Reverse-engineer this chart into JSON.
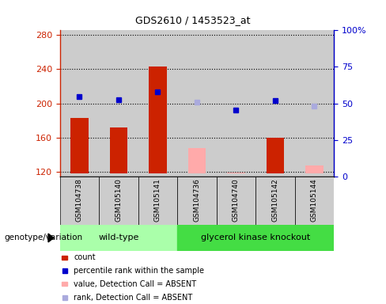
{
  "title": "GDS2610 / 1453523_at",
  "samples": [
    "GSM104738",
    "GSM105140",
    "GSM105141",
    "GSM104736",
    "GSM104740",
    "GSM105142",
    "GSM105144"
  ],
  "group1_count": 3,
  "group2_count": 4,
  "group1_label": "wild-type",
  "group2_label": "glycerol kinase knockout",
  "genotype_label": "genotype/variation",
  "ylim_left": [
    115,
    285
  ],
  "ylim_right": [
    0,
    100
  ],
  "yticks_left": [
    120,
    160,
    200,
    240,
    280
  ],
  "yticks_right": [
    0,
    25,
    50,
    75,
    100
  ],
  "bar_values": [
    183,
    172,
    243,
    0,
    0,
    160,
    0
  ],
  "bar_absent_values": [
    0,
    0,
    0,
    148,
    119,
    0,
    128
  ],
  "bar_base": 118,
  "dot_values": [
    208,
    204,
    213,
    0,
    192,
    203,
    0
  ],
  "dot_absent_values": [
    0,
    0,
    0,
    201,
    0,
    0,
    197
  ],
  "bar_color": "#cc2200",
  "bar_absent_color": "#ffaaaa",
  "dot_color": "#0000cc",
  "dot_absent_color": "#aaaadd",
  "group1_bg": "#aaffaa",
  "group2_bg": "#44dd44",
  "tick_bg": "#cccccc",
  "label_color_left": "#cc2200",
  "label_color_right": "#0000cc",
  "bar_width": 0.45,
  "figsize": [
    4.88,
    3.84
  ],
  "dpi": 100
}
